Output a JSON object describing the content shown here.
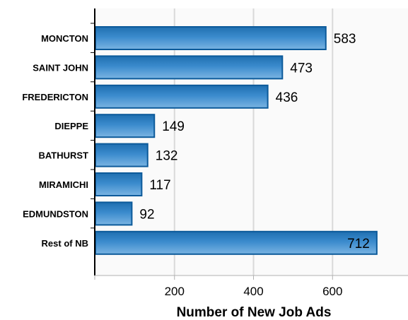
{
  "chart_data": {
    "type": "bar",
    "orientation": "horizontal",
    "categories": [
      "MONCTON",
      "SAINT JOHN",
      "FREDERICTON",
      "DIEPPE",
      "BATHURST",
      "MIRAMICHI",
      "EDMUNDSTON",
      "Rest of NB"
    ],
    "values": [
      583,
      473,
      436,
      149,
      132,
      117,
      92,
      712
    ],
    "value_labels": [
      "583",
      "473",
      "436",
      "149",
      "132",
      "117",
      "92",
      "712"
    ],
    "xlabel": "Number of New Job Ads",
    "xlim": [
      0,
      800
    ],
    "xticks": [
      200,
      400,
      600
    ],
    "xtick_labels": [
      "200",
      "400",
      "600"
    ],
    "grid": "vertical",
    "legend": "none",
    "colors": {
      "bar_fill": "#2f7fc0",
      "bar_light": "#6aa9dc",
      "bar_border": "#0c5a9a",
      "plot_bg": "#fafafa",
      "grid": "#d9d9d9"
    }
  }
}
